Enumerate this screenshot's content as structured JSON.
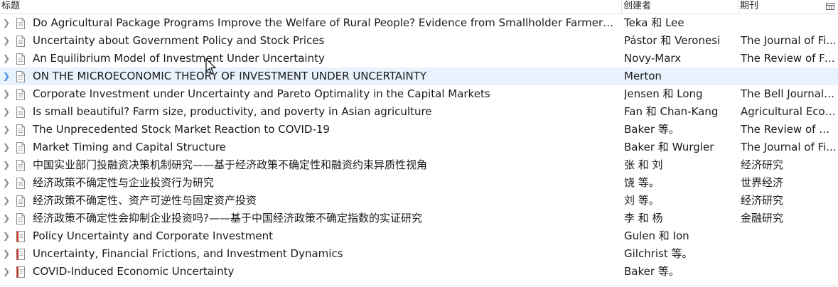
{
  "columns": {
    "title": "标题",
    "creator": "创建者",
    "publication": "期刊"
  },
  "rows": [
    {
      "title": "Do Agricultural Package Programs Improve the Welfare of Rural People? Evidence from Smallholder Farmers in E...",
      "creator": "Teka 和 Lee",
      "publication": "",
      "icon": "document-icon"
    },
    {
      "title": "Uncertainty about Government Policy and Stock Prices",
      "creator": "Pástor 和 Veronesi",
      "publication": "The Journal of Fi...",
      "icon": "document-icon"
    },
    {
      "title": "An Equilibrium Model of Investment Under Uncertainty",
      "creator": "Novy-Marx",
      "publication": "The Review of Fi...",
      "icon": "document-icon"
    },
    {
      "title": "ON THE MICROECONOMIC THEORY OF INVESTMENT UNDER UNCERTAINTY",
      "creator": "Merton",
      "publication": "",
      "icon": "document-icon",
      "selected": true
    },
    {
      "title": "Corporate Investment under Uncertainty and Pareto Optimality in the Capital Markets",
      "creator": "Jensen 和 Long",
      "publication": "The Bell Journal ...",
      "icon": "document-icon"
    },
    {
      "title": "Is small beautiful? Farm size, productivity, and poverty in Asian agriculture",
      "creator": "Fan 和 Chan-Kang",
      "publication": "Agricultural Econ...",
      "icon": "document-icon"
    },
    {
      "title": "The Unprecedented Stock Market Reaction to COVID-19",
      "creator": "Baker 等。",
      "publication": "The Review of As...",
      "icon": "document-icon"
    },
    {
      "title": "Market Timing and Capital Structure",
      "creator": "Baker 和 Wurgler",
      "publication": "The Journal of Fi...",
      "icon": "document-icon"
    },
    {
      "title": "中国实业部门投融资决策机制研究——基于经济政策不确定性和融资约束异质性视角",
      "creator": "张 和 刘",
      "publication": "经济研究",
      "icon": "document-icon"
    },
    {
      "title": "经济政策不确定性与企业投资行为研究",
      "creator": "饶 等。",
      "publication": "世界经济",
      "icon": "document-icon"
    },
    {
      "title": "经济政策不确定性、资产可逆性与固定资产投资",
      "creator": "刘 等。",
      "publication": "经济研究",
      "icon": "document-icon"
    },
    {
      "title": "经济政策不确定性会抑制企业投资吗?——基于中国经济政策不确定指数的实证研究",
      "creator": "李 和 杨",
      "publication": "金融研究",
      "icon": "document-icon"
    },
    {
      "title": "Policy Uncertainty and Corporate Investment",
      "creator": "Gulen 和 Ion",
      "publication": "",
      "icon": "book-icon"
    },
    {
      "title": "Uncertainty, Financial Frictions, and Investment Dynamics",
      "creator": "Gilchrist 等。",
      "publication": "",
      "icon": "book-icon"
    },
    {
      "title": "COVID-Induced Economic Uncertainty",
      "creator": "Baker 等。",
      "publication": "",
      "icon": "book-icon"
    }
  ],
  "colors": {
    "selected_row": "#e8f3fd",
    "twisty_selected": "#3a8ee6",
    "book_icon_accent": "#c0392b"
  }
}
